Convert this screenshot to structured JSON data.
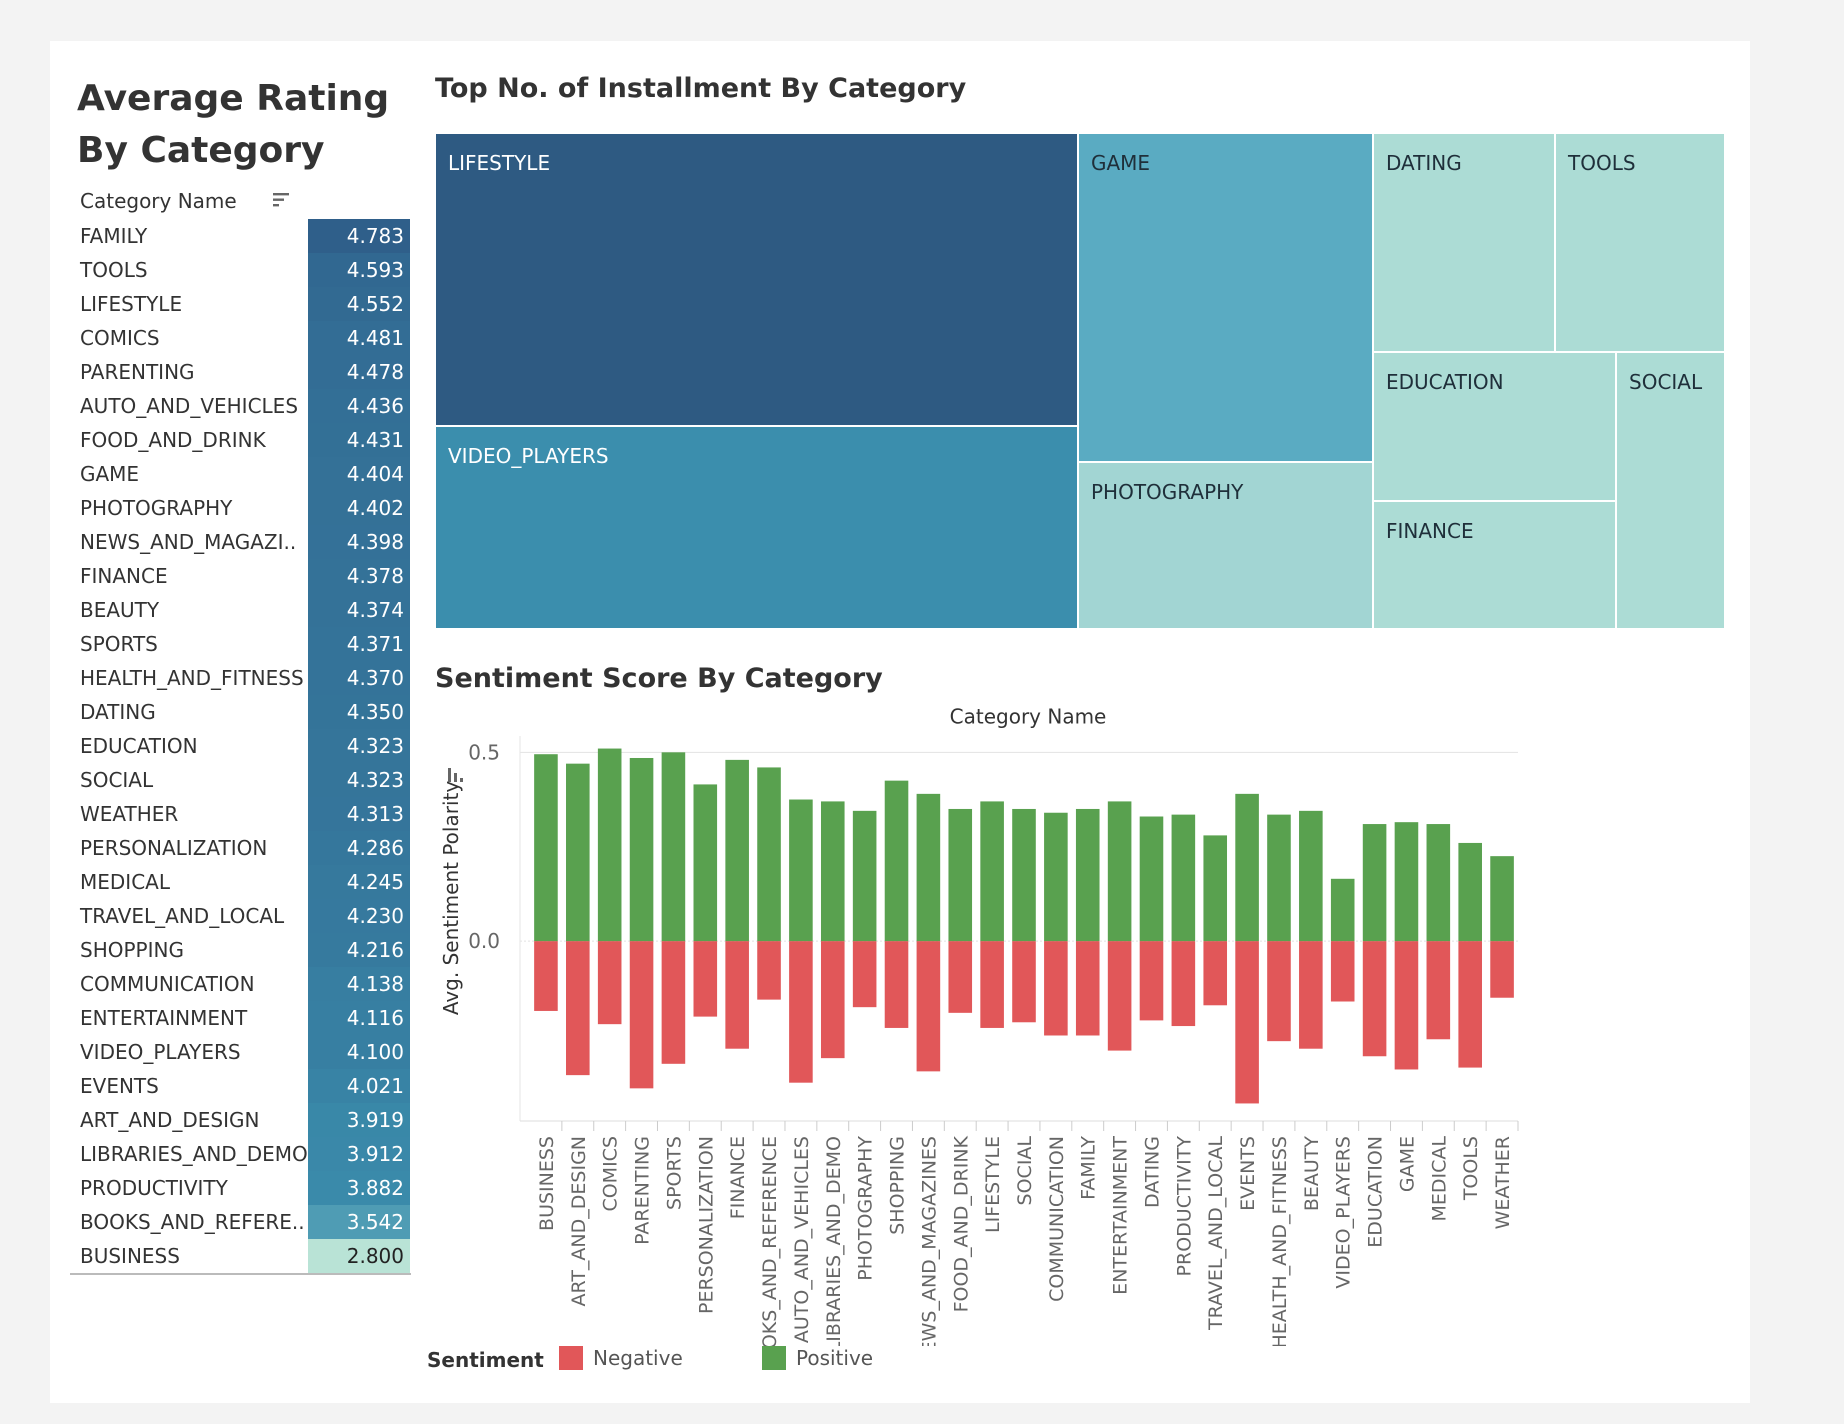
{
  "rating_table": {
    "title": "Average Rating By Category",
    "header": "Category Name",
    "icons": {
      "sort": "sort-descending-icon"
    },
    "rows": [
      {
        "name": "FAMILY",
        "value": "4.783"
      },
      {
        "name": "TOOLS",
        "value": "4.593"
      },
      {
        "name": "LIFESTYLE",
        "value": "4.552"
      },
      {
        "name": "COMICS",
        "value": "4.481"
      },
      {
        "name": "PARENTING",
        "value": "4.478"
      },
      {
        "name": "AUTO_AND_VEHICLES",
        "value": "4.436"
      },
      {
        "name": "FOOD_AND_DRINK",
        "value": "4.431"
      },
      {
        "name": "GAME",
        "value": "4.404"
      },
      {
        "name": "PHOTOGRAPHY",
        "value": "4.402"
      },
      {
        "name": "NEWS_AND_MAGAZI..",
        "value": "4.398"
      },
      {
        "name": "FINANCE",
        "value": "4.378"
      },
      {
        "name": "BEAUTY",
        "value": "4.374"
      },
      {
        "name": "SPORTS",
        "value": "4.371"
      },
      {
        "name": "HEALTH_AND_FITNESS",
        "value": "4.370"
      },
      {
        "name": "DATING",
        "value": "4.350"
      },
      {
        "name": "EDUCATION",
        "value": "4.323"
      },
      {
        "name": "SOCIAL",
        "value": "4.323"
      },
      {
        "name": "WEATHER",
        "value": "4.313"
      },
      {
        "name": "PERSONALIZATION",
        "value": "4.286"
      },
      {
        "name": "MEDICAL",
        "value": "4.245"
      },
      {
        "name": "TRAVEL_AND_LOCAL",
        "value": "4.230"
      },
      {
        "name": "SHOPPING",
        "value": "4.216"
      },
      {
        "name": "COMMUNICATION",
        "value": "4.138"
      },
      {
        "name": "ENTERTAINMENT",
        "value": "4.116"
      },
      {
        "name": "VIDEO_PLAYERS",
        "value": "4.100"
      },
      {
        "name": "EVENTS",
        "value": "4.021"
      },
      {
        "name": "ART_AND_DESIGN",
        "value": "3.919"
      },
      {
        "name": "LIBRARIES_AND_DEMO",
        "value": "3.912"
      },
      {
        "name": "PRODUCTIVITY",
        "value": "3.882"
      },
      {
        "name": "BOOKS_AND_REFERE..",
        "value": "3.542"
      },
      {
        "name": "BUSINESS",
        "value": "2.800"
      }
    ]
  },
  "treemap": {
    "title": "Top No. of Installment By Category",
    "tiles": [
      {
        "name": "LIFESTYLE",
        "color": "#2e5a82",
        "text_color": "#ffffff"
      },
      {
        "name": "VIDEO_PLAYERS",
        "color": "#3b8ead",
        "text_color": "#ffffff"
      },
      {
        "name": "GAME",
        "color": "#5aabc2",
        "text_color": "#1f2f3a"
      },
      {
        "name": "PHOTOGRAPHY",
        "color": "#a2d5d3",
        "text_color": "#1f2f3a"
      },
      {
        "name": "DATING",
        "color": "#acdcd5",
        "text_color": "#1f2f3a"
      },
      {
        "name": "TOOLS",
        "color": "#acdcd5",
        "text_color": "#1f2f3a"
      },
      {
        "name": "EDUCATION",
        "color": "#acdcd5",
        "text_color": "#1f2f3a"
      },
      {
        "name": "FINANCE",
        "color": "#acdcd5",
        "text_color": "#1f2f3a"
      },
      {
        "name": "SOCIAL",
        "color": "#acdcd5",
        "text_color": "#1f2f3a"
      }
    ]
  },
  "chart_data": {
    "type": "bar",
    "title": "Sentiment Score By Category",
    "xlabel": "Category Name",
    "ylabel": "Avg. Sentiment Polarity",
    "ylim": [
      -0.45,
      0.53
    ],
    "yticks": [
      "0.5",
      "0.0"
    ],
    "ytick_values": [
      0.5,
      0.0
    ],
    "grid": true,
    "stacked": true,
    "legend_title": "Sentiment",
    "legend_position": "bottom-left",
    "categories": [
      "BUSINESS",
      "ART_AND_DESIGN",
      "COMICS",
      "PARENTING",
      "SPORTS",
      "PERSONALIZATION",
      "FINANCE",
      "BOOKS_AND_REFERENCE",
      "AUTO_AND_VEHICLES",
      "LIBRARIES_AND_DEMO",
      "PHOTOGRAPHY",
      "SHOPPING",
      "NEWS_AND_MAGAZINES",
      "FOOD_AND_DRINK",
      "LIFESTYLE",
      "SOCIAL",
      "COMMUNICATION",
      "FAMILY",
      "ENTERTAINMENT",
      "DATING",
      "PRODUCTIVITY",
      "TRAVEL_AND_LOCAL",
      "EVENTS",
      "HEALTH_AND_FITNESS",
      "BEAUTY",
      "VIDEO_PLAYERS",
      "EDUCATION",
      "GAME",
      "MEDICAL",
      "TOOLS",
      "WEATHER"
    ],
    "series": [
      {
        "name": "Negative",
        "color": "#e15759",
        "values": [
          -0.185,
          -0.355,
          -0.22,
          -0.39,
          -0.325,
          -0.2,
          -0.285,
          -0.155,
          -0.375,
          -0.31,
          -0.175,
          -0.23,
          -0.345,
          -0.19,
          -0.23,
          -0.215,
          -0.25,
          -0.25,
          -0.29,
          -0.21,
          -0.225,
          -0.17,
          -0.43,
          -0.265,
          -0.285,
          -0.16,
          -0.305,
          -0.34,
          -0.26,
          -0.335,
          -0.15
        ]
      },
      {
        "name": "Positive",
        "color": "#59a14f",
        "values": [
          0.495,
          0.47,
          0.51,
          0.485,
          0.5,
          0.415,
          0.48,
          0.46,
          0.375,
          0.37,
          0.345,
          0.425,
          0.39,
          0.35,
          0.37,
          0.35,
          0.34,
          0.35,
          0.37,
          0.33,
          0.335,
          0.28,
          0.39,
          0.335,
          0.345,
          0.165,
          0.31,
          0.315,
          0.31,
          0.26,
          0.225
        ]
      }
    ]
  }
}
